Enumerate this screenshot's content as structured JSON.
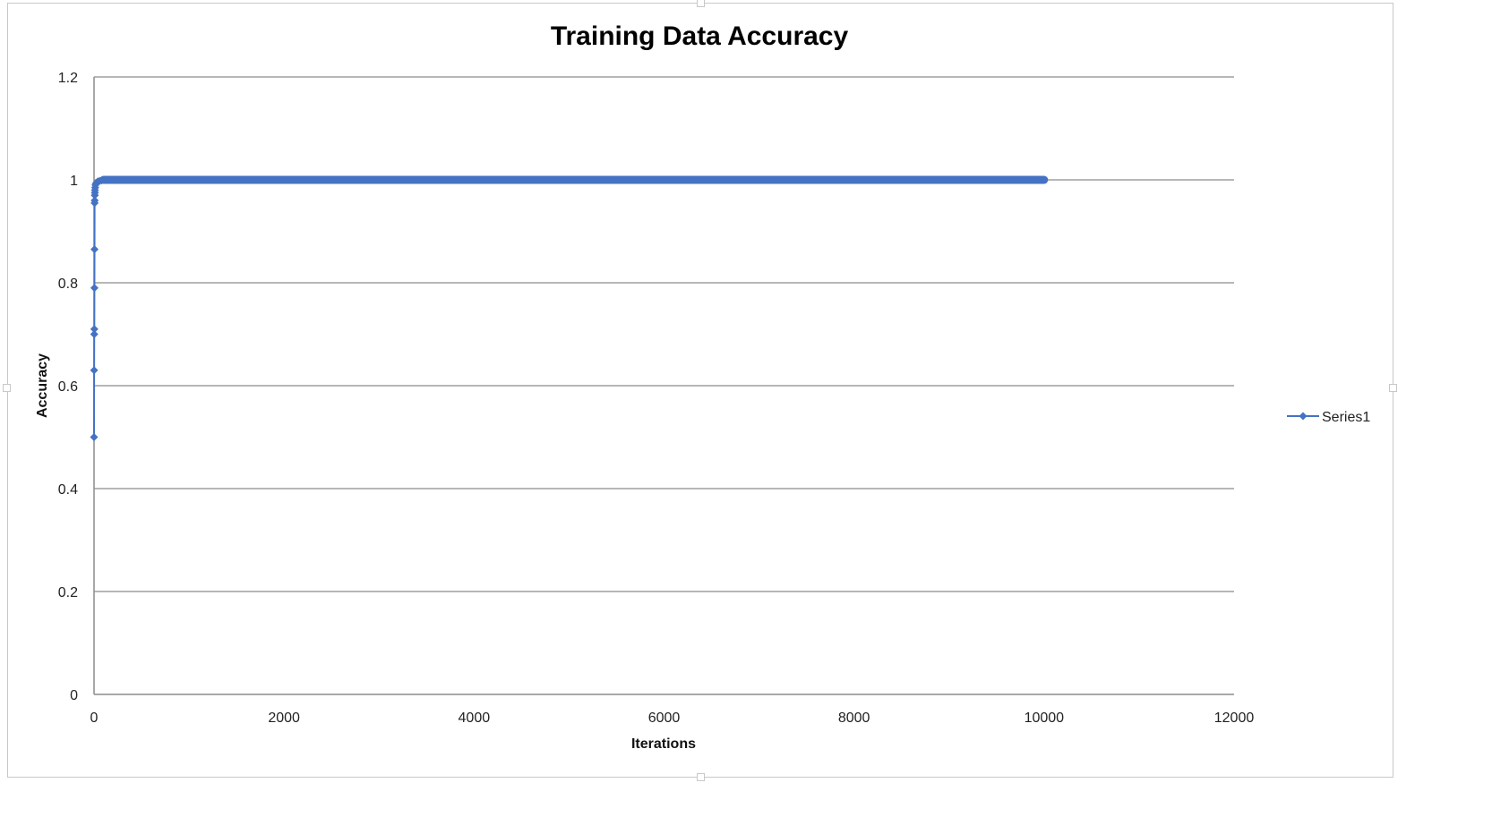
{
  "chart_data": {
    "type": "line",
    "title": "Training Data Accuracy",
    "xlabel": "Iterations",
    "ylabel": "Accuracy",
    "xlim": [
      0,
      12000
    ],
    "ylim": [
      0,
      1.2
    ],
    "x_ticks": [
      "0",
      "2000",
      "4000",
      "6000",
      "8000",
      "10000",
      "12000"
    ],
    "y_ticks": [
      "0",
      "0.2",
      "0.4",
      "0.6",
      "0.8",
      "1",
      "1.2"
    ],
    "grid": true,
    "legend_position": "right",
    "marker": "diamond",
    "colors": {
      "series": "#4472C4",
      "grid": "#8c8c8c",
      "axis": "#8c8c8c"
    },
    "series": [
      {
        "name": "Series1",
        "x": [
          0,
          1,
          2,
          3,
          4,
          5,
          6,
          7,
          8,
          9,
          10,
          12,
          15,
          20,
          30,
          40,
          60,
          80,
          100,
          500,
          1000,
          2000,
          3000,
          4000,
          5000,
          6000,
          7000,
          8000,
          9000,
          10000
        ],
        "y": [
          0.5,
          0.63,
          0.7,
          0.71,
          0.79,
          0.865,
          0.955,
          0.96,
          0.97,
          0.975,
          0.98,
          0.985,
          0.99,
          0.993,
          0.995,
          0.997,
          0.998,
          0.999,
          1.0,
          1.0,
          1.0,
          1.0,
          1.0,
          1.0,
          1.0,
          1.0,
          1.0,
          1.0,
          1.0,
          1.0
        ]
      }
    ]
  }
}
